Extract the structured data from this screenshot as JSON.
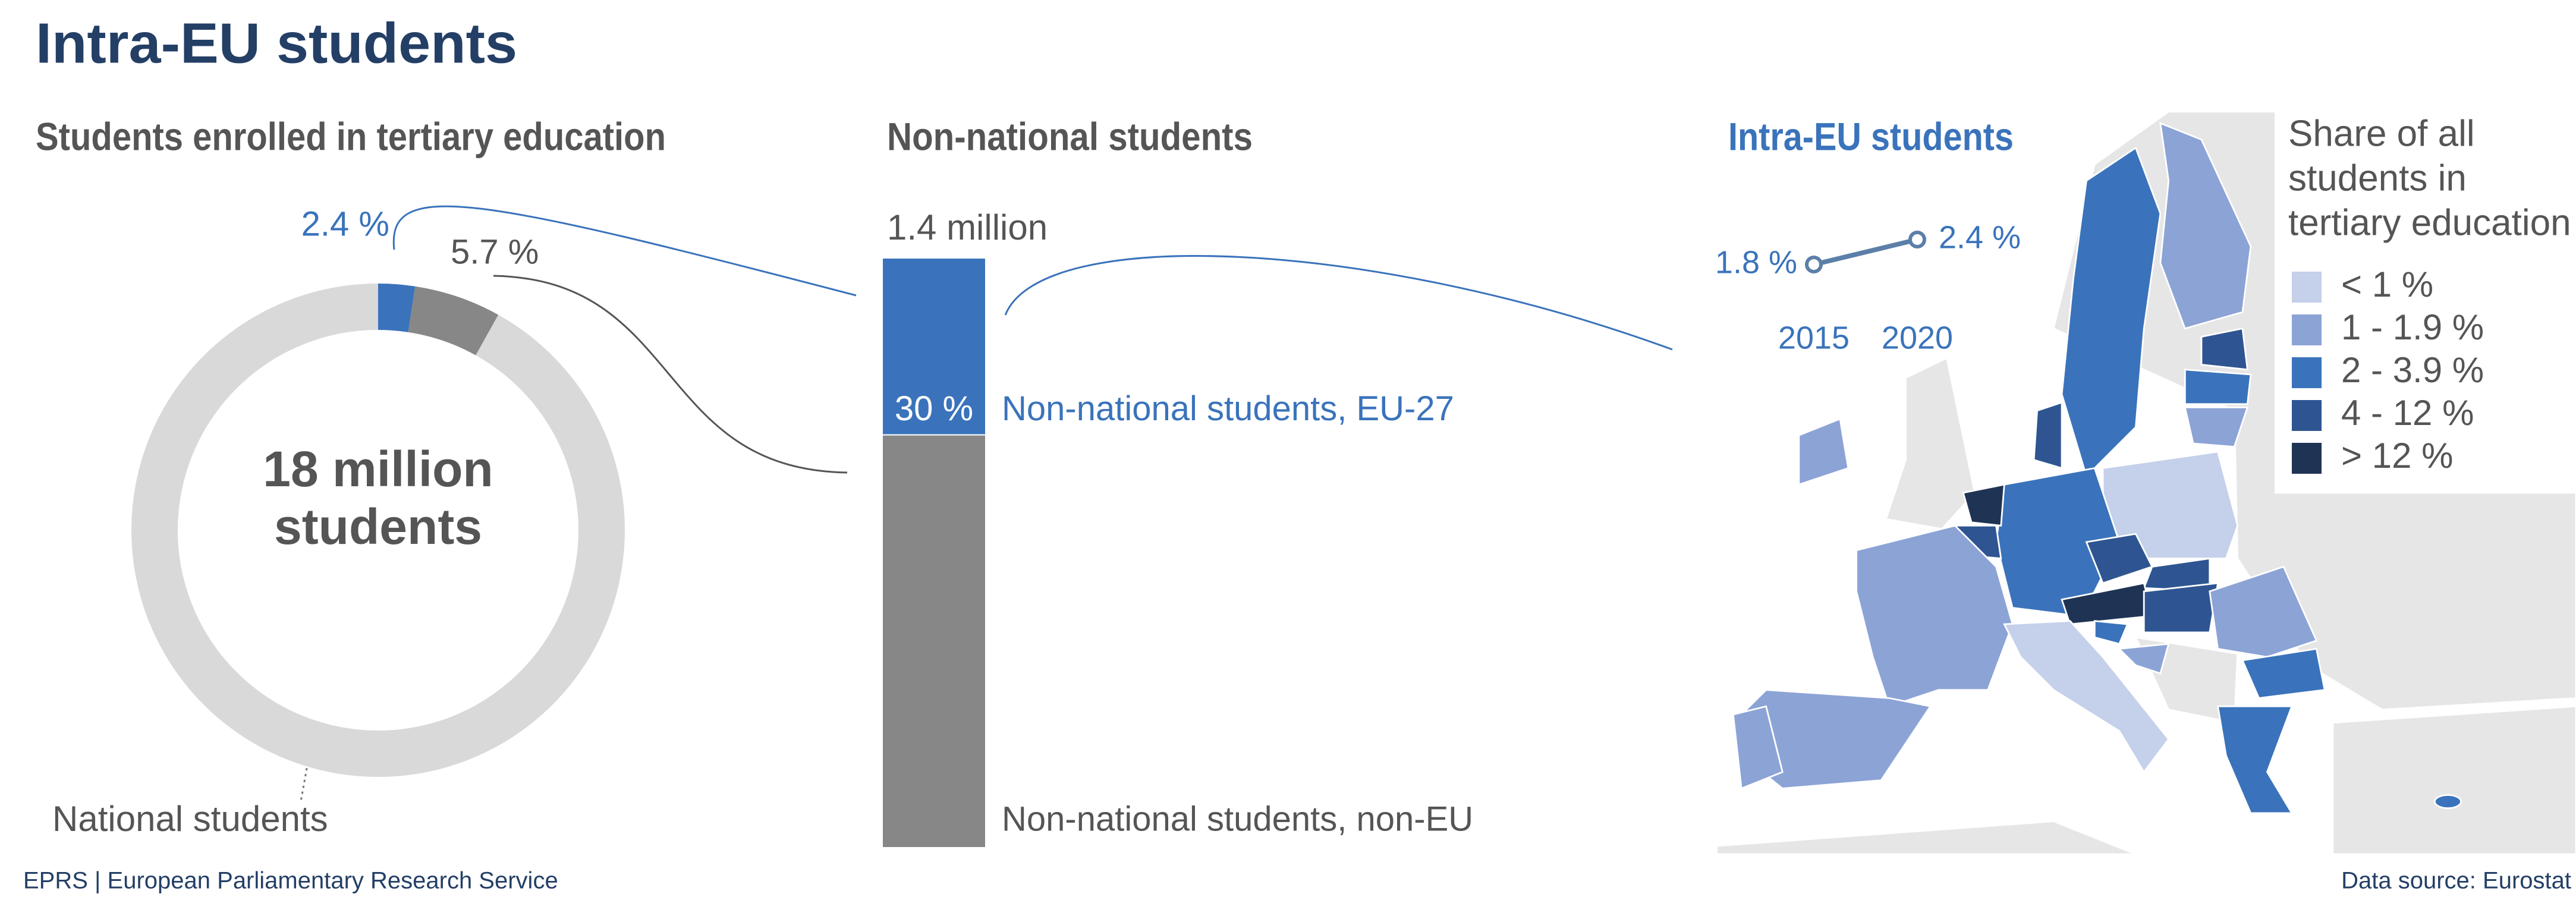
{
  "title": "Intra-EU students",
  "footer_left": "EPRS | European Parliamentary Research Service",
  "footer_right": "Data source: Eurostat",
  "chart_data": [
    {
      "type": "donut",
      "title": "Students enrolled in tertiary education",
      "center_label": [
        "18 million",
        "students"
      ],
      "categories": [
        null,
        null,
        "National students"
      ],
      "values": [
        2.4,
        5.7,
        91.9
      ],
      "value_labels": [
        "2.4 %",
        "5.7 %",
        null
      ],
      "colors": [
        "#3a73bb",
        "#878787",
        "#d9d9d9"
      ]
    },
    {
      "type": "stacked-bar",
      "title": "Non-national students",
      "total_label": "1.4 million",
      "series": [
        {
          "name": "Non-national students, EU-27",
          "color": "#3a73bb",
          "values": [
            30
          ],
          "value_labels": [
            "30 %"
          ]
        },
        {
          "name": "Non-national students, non-EU",
          "color": "#878787",
          "values": [
            70
          ]
        }
      ]
    },
    {
      "type": "line",
      "title": "Intra-EU students",
      "x": [
        2015,
        2020
      ],
      "values": [
        1.8,
        2.4
      ],
      "value_labels": [
        "1.8 %",
        "2.4 %"
      ],
      "xlim": [
        2015,
        2020
      ],
      "color": "#5b7fa8"
    },
    {
      "type": "map",
      "legend_title": [
        "Share of all",
        "students in",
        "tertiary education"
      ],
      "legend": [
        {
          "label": "< 1 %",
          "color": "#c5d0ea"
        },
        {
          "label": "1 - 1.9 %",
          "color": "#8ca3d6"
        },
        {
          "label": "2 - 3.9 %",
          "color": "#3a73bb"
        },
        {
          "label": "4 - 12 %",
          "color": "#2e5591"
        },
        {
          "label": "> 12 %",
          "color": "#1f3354"
        }
      ]
    }
  ]
}
